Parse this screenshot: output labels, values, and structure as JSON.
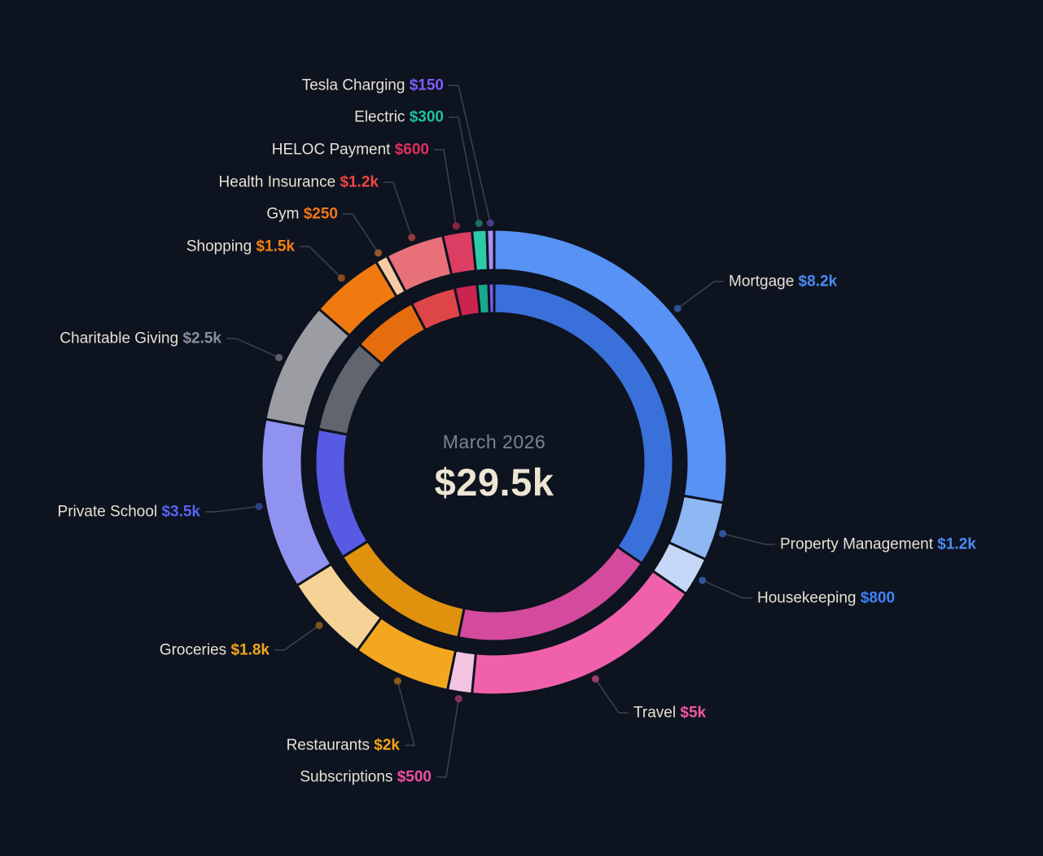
{
  "chart_data": {
    "type": "donut",
    "title": "March 2026",
    "center": {
      "period": "March 2026",
      "total": "$29.5k"
    },
    "total_value": 29500,
    "direction": "clockwise",
    "start_angle_deg": 0,
    "background": "#0e1320",
    "rings": [
      "outer: individual categories",
      "inner: grouped categories in darker shades"
    ],
    "legend_position": "none (callout labels around chart)",
    "categories": [
      {
        "label": "Mortgage",
        "value": 8200,
        "display": "$8.2k",
        "color": "#5792f4",
        "value_color": "#4a8bf3",
        "dot_color": "#2a4f96",
        "group": 0
      },
      {
        "label": "Property Management",
        "value": 1200,
        "display": "$1.2k",
        "color": "#8fb7f3",
        "value_color": "#4a8bf3",
        "dot_color": "#2e5799",
        "group": 0
      },
      {
        "label": "Housekeeping",
        "value": 800,
        "display": "$800",
        "color": "#c6d8f7",
        "value_color": "#3f84f6",
        "dot_color": "#2e5799",
        "group": 0
      },
      {
        "label": "Travel",
        "value": 5000,
        "display": "$5k",
        "color": "#f161ab",
        "value_color": "#ef58a1",
        "dot_color": "#9c3a6e",
        "group": 1
      },
      {
        "label": "Subscriptions",
        "value": 500,
        "display": "$500",
        "color": "#f3c4e1",
        "value_color": "#ee4f9f",
        "dot_color": "#8c3060",
        "group": 1
      },
      {
        "label": "Restaurants",
        "value": 2000,
        "display": "$2k",
        "color": "#f3a71f",
        "value_color": "#f2a513",
        "dot_color": "#8a5a20",
        "group": 2
      },
      {
        "label": "Groceries",
        "value": 1800,
        "display": "$1.8k",
        "color": "#f5d397",
        "value_color": "#f2a71c",
        "dot_color": "#7d561d",
        "group": 2
      },
      {
        "label": "Private School",
        "value": 3500,
        "display": "$3.5k",
        "color": "#8f93ef",
        "value_color": "#5565f2",
        "dot_color": "#2c3f8c",
        "group": 3
      },
      {
        "label": "Charitable Giving",
        "value": 2500,
        "display": "$2.5k",
        "color": "#9b9da2",
        "value_color": "#878e9c",
        "dot_color": "#5c6168",
        "group": 4
      },
      {
        "label": "Shopping",
        "value": 1500,
        "display": "$1.5k",
        "color": "#f07a10",
        "value_color": "#f5810e",
        "dot_color": "#8a4d1f",
        "group": 5
      },
      {
        "label": "Gym",
        "value": 250,
        "display": "$250",
        "color": "#f8caa2",
        "value_color": "#f17716",
        "dot_color": "#95572a",
        "group": 5
      },
      {
        "label": "Health Insurance",
        "value": 1200,
        "display": "$1.2k",
        "color": "#e87179",
        "value_color": "#f14444",
        "dot_color": "#983a3e",
        "group": 6
      },
      {
        "label": "HELOC Payment",
        "value": 600,
        "display": "$600",
        "color": "#dc3d63",
        "value_color": "#e02f5e",
        "dot_color": "#8c2440",
        "group": 7
      },
      {
        "label": "Electric",
        "value": 300,
        "display": "$300",
        "color": "#2dcaa8",
        "value_color": "#1fc09e",
        "dot_color": "#1a6e5e",
        "group": 8
      },
      {
        "label": "Tesla Charging",
        "value": 150,
        "display": "$150",
        "color": "#ab8ef7",
        "value_color": "#7d5cfb",
        "dot_color": "#4a3e8c",
        "group": 9
      }
    ],
    "inner_ring_groups": [
      {
        "label": "Mortgage + Property Management + Housekeeping",
        "value": 10200,
        "color": "#3a70d9"
      },
      {
        "label": "Travel + Subscriptions",
        "value": 5500,
        "color": "#d44a9c"
      },
      {
        "label": "Restaurants + Groceries",
        "value": 3800,
        "color": "#e0920f"
      },
      {
        "label": "Private School",
        "value": 3500,
        "color": "#575ae3"
      },
      {
        "label": "Charitable Giving",
        "value": 2500,
        "color": "#60656e"
      },
      {
        "label": "Shopping + Gym",
        "value": 1750,
        "color": "#e56d0d"
      },
      {
        "label": "Health Insurance",
        "value": 1200,
        "color": "#de4549"
      },
      {
        "label": "HELOC Payment",
        "value": 600,
        "color": "#ca2550"
      },
      {
        "label": "Electric",
        "value": 300,
        "color": "#18a98d"
      },
      {
        "label": "Tesla Charging",
        "value": 150,
        "color": "#7d5ceb"
      }
    ]
  }
}
